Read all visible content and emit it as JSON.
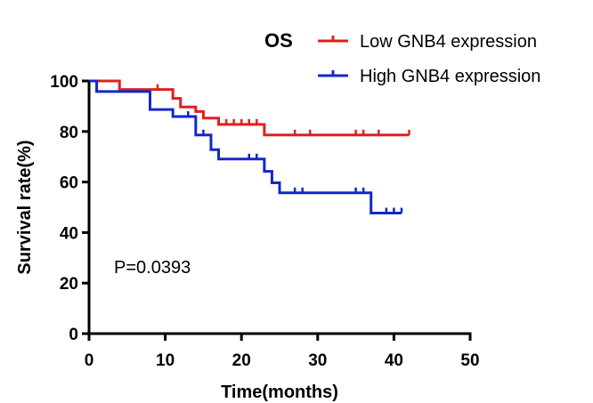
{
  "chart_data": {
    "type": "line",
    "title": "OS",
    "xlabel": "Time(months)",
    "ylabel": "Survival rate(%)",
    "xlim": [
      0,
      50
    ],
    "ylim": [
      0,
      100
    ],
    "xticks": [
      0,
      10,
      20,
      30,
      40,
      50
    ],
    "yticks": [
      0,
      20,
      40,
      60,
      80,
      100
    ],
    "grid": false,
    "legend_position": "top-right",
    "annotation": "P=0.0393",
    "series": [
      {
        "name": "Low GNB4 expression",
        "color": "#e02020",
        "x": [
          0,
          4,
          11,
          12,
          14,
          15,
          17,
          23,
          42
        ],
        "y": [
          100,
          96.6,
          93.1,
          89.7,
          87.9,
          85.3,
          82.8,
          78.6,
          78.6
        ],
        "censored": [
          [
            9,
            96.6
          ],
          [
            18,
            82.8
          ],
          [
            19,
            82.8
          ],
          [
            20,
            82.8
          ],
          [
            21,
            82.8
          ],
          [
            22,
            82.8
          ],
          [
            27,
            78.6
          ],
          [
            29,
            78.6
          ],
          [
            35,
            78.6
          ],
          [
            36,
            78.6
          ],
          [
            38,
            78.6
          ],
          [
            42,
            78.6
          ]
        ]
      },
      {
        "name": "High GNB4 expression",
        "color": "#1428c8",
        "x": [
          0,
          1,
          8,
          11,
          14,
          16,
          17,
          23,
          24,
          25,
          37,
          41
        ],
        "y": [
          100,
          95.8,
          88.7,
          85.9,
          78.6,
          72.8,
          69.1,
          64.2,
          59.7,
          55.7,
          47.7,
          47.7
        ],
        "censored": [
          [
            13,
            85.9
          ],
          [
            15,
            78.6
          ],
          [
            21,
            69.1
          ],
          [
            22,
            69.1
          ],
          [
            27,
            55.7
          ],
          [
            28,
            55.7
          ],
          [
            35,
            55.7
          ],
          [
            36,
            55.7
          ],
          [
            39,
            47.7
          ],
          [
            40,
            47.7
          ],
          [
            41,
            47.7
          ]
        ]
      }
    ]
  }
}
